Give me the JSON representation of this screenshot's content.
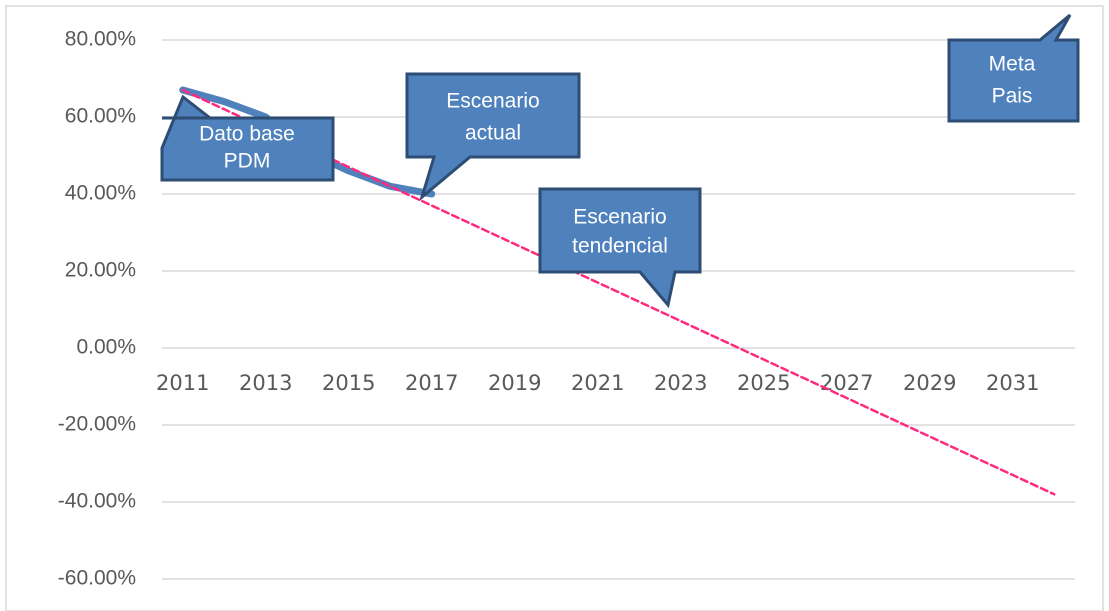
{
  "chart_data": {
    "type": "line",
    "categories": [
      "2011",
      null,
      "2013",
      null,
      "2015",
      null,
      "2017",
      null,
      "2019",
      null,
      "2021",
      null,
      "2023",
      null,
      "2025",
      null,
      "2027",
      null,
      "2029",
      null,
      "2031",
      null
    ],
    "series": [
      {
        "color": "#4f81bd",
        "style": "solid",
        "values": [
          67,
          64,
          60,
          51,
          46,
          42,
          40,
          null,
          null,
          null,
          null,
          null,
          null,
          null,
          null,
          null,
          null,
          null,
          null,
          null,
          null,
          null
        ]
      },
      {
        "color": "#ff2a7f",
        "style": "dashed",
        "values": [
          67,
          62,
          57,
          52,
          47,
          42,
          37,
          32,
          27,
          22,
          17,
          12,
          7,
          2,
          -3,
          -8,
          -13,
          -18,
          -23,
          -28,
          -33,
          -38
        ]
      }
    ],
    "ylim": [
      -60,
      80
    ],
    "yticks": [
      {
        "value": -60,
        "label": "-60.00%"
      },
      {
        "value": -40,
        "label": "-40.00%"
      },
      {
        "value": -20,
        "label": "-20.00%"
      },
      {
        "value": 0,
        "label": "0.00%"
      },
      {
        "value": 20,
        "label": "20.00%"
      },
      {
        "value": 40,
        "label": "40.00%"
      },
      {
        "value": 60,
        "label": "60.00%"
      },
      {
        "value": 80,
        "label": "80.00%"
      }
    ],
    "grid": true,
    "annotations": [
      {
        "lines": [
          "Dato base",
          "PDM"
        ]
      },
      {
        "lines": [
          "Escenario",
          "actual"
        ]
      },
      {
        "lines": [
          "Escenario",
          "tendencial"
        ]
      },
      {
        "lines": [
          "Meta",
          "Pais"
        ]
      }
    ]
  }
}
